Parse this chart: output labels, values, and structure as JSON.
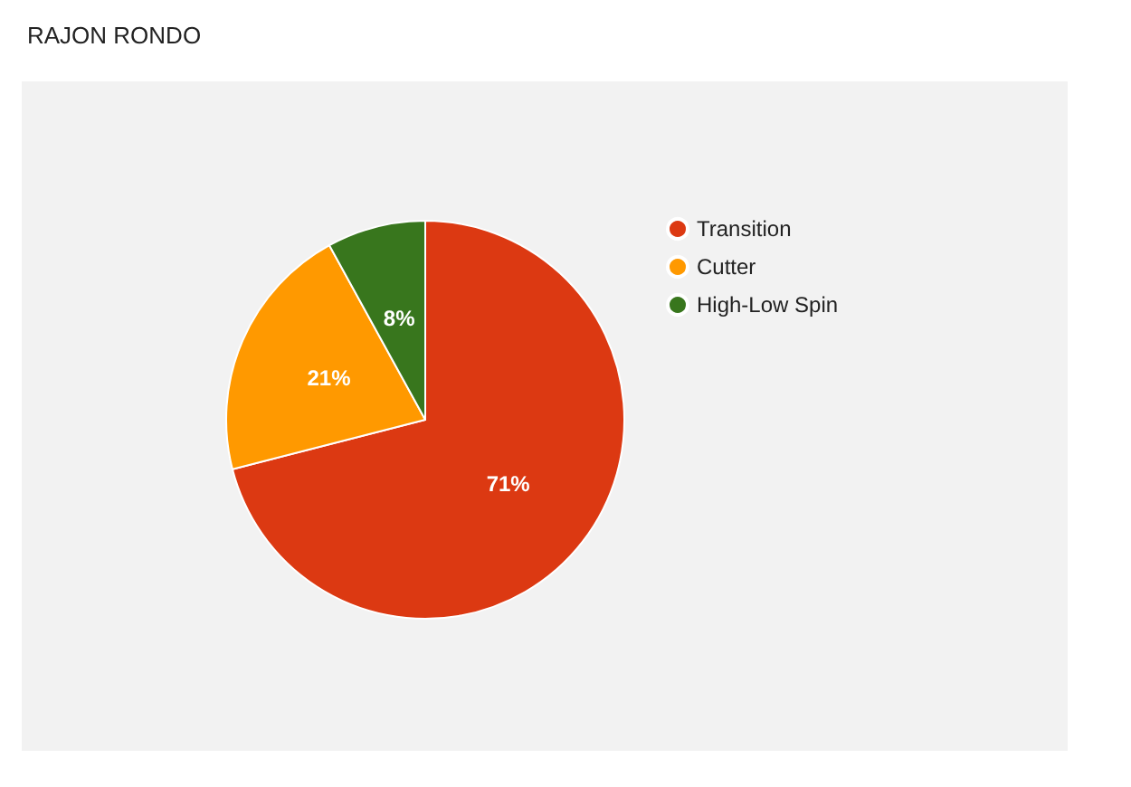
{
  "chart_data": {
    "type": "pie",
    "title": "RAJON RONDO",
    "categories": [
      "Transition",
      "Cutter",
      "High-Low Spin"
    ],
    "values": [
      71,
      21,
      8
    ],
    "colors": [
      "#dc3912",
      "#ff9900",
      "#38761d"
    ],
    "value_labels": [
      "71%",
      "21%",
      "8%"
    ],
    "legend": "right"
  }
}
